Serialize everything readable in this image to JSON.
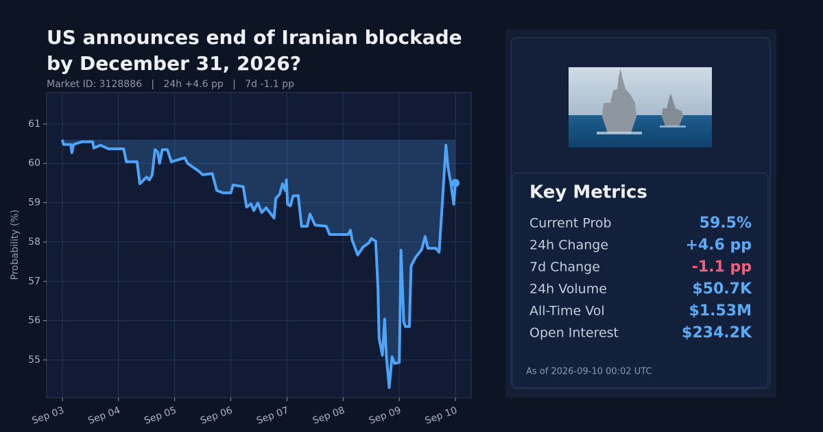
{
  "chart_data": {
    "type": "line",
    "title_lines": [
      "US announces end of Iranian blockade",
      "by December 31, 2026?"
    ],
    "subtitle": "Market ID: 3128886   |   24h +4.6 pp   |   7d -1.1 pp",
    "y_label": "Probability (%)",
    "x": [
      3.0,
      3.02,
      3.15,
      3.17,
      3.2,
      3.35,
      3.54,
      3.56,
      3.68,
      3.82,
      4.09,
      4.14,
      4.33,
      4.38,
      4.45,
      4.5,
      4.55,
      4.6,
      4.65,
      4.7,
      4.73,
      4.78,
      4.87,
      4.94,
      5.18,
      5.23,
      5.33,
      5.43,
      5.5,
      5.67,
      5.75,
      5.86,
      6.0,
      6.04,
      6.22,
      6.28,
      6.36,
      6.41,
      6.48,
      6.55,
      6.63,
      6.72,
      6.77,
      6.8,
      6.87,
      6.92,
      6.97,
      6.99,
      7.01,
      7.06,
      7.11,
      7.2,
      7.26,
      7.36,
      7.41,
      7.5,
      7.7,
      7.76,
      8.09,
      8.13,
      8.16,
      8.26,
      8.36,
      8.46,
      8.5,
      8.58,
      8.62,
      8.64,
      8.7,
      8.74,
      8.77,
      8.82,
      8.87,
      8.92,
      9.0,
      9.03,
      9.08,
      9.11,
      9.18,
      9.21,
      9.29,
      9.4,
      9.46,
      9.51,
      9.65,
      9.71,
      9.77,
      9.83,
      9.87,
      9.92,
      9.97,
      10.0
    ],
    "series": [
      {
        "name": "Probability",
        "color": "#4da3f7",
        "values": [
          60.6,
          60.48,
          60.48,
          60.27,
          60.48,
          60.55,
          60.55,
          60.39,
          60.46,
          60.37,
          60.37,
          60.04,
          60.04,
          59.48,
          59.58,
          59.65,
          59.58,
          59.71,
          60.35,
          60.28,
          60.0,
          60.35,
          60.35,
          60.04,
          60.14,
          60.0,
          59.9,
          59.8,
          59.71,
          59.74,
          59.31,
          59.25,
          59.25,
          59.45,
          59.41,
          58.89,
          58.97,
          58.8,
          58.99,
          58.75,
          58.87,
          58.7,
          58.61,
          59.1,
          59.22,
          59.48,
          59.31,
          59.58,
          58.96,
          58.92,
          59.17,
          59.18,
          58.4,
          58.4,
          58.71,
          58.43,
          58.4,
          58.19,
          58.19,
          58.3,
          58.05,
          57.67,
          57.88,
          57.98,
          58.09,
          58.02,
          56.83,
          55.55,
          55.12,
          56.04,
          55.08,
          54.3,
          55.08,
          54.91,
          54.94,
          57.79,
          55.96,
          55.85,
          55.85,
          57.39,
          57.61,
          57.81,
          58.14,
          57.84,
          57.84,
          57.74,
          59.06,
          60.46,
          59.88,
          59.48,
          58.96,
          59.5
        ]
      }
    ],
    "xlim": [
      2.72,
      10.28
    ],
    "xticks": [
      {
        "value": 3,
        "label": "Sep 03"
      },
      {
        "value": 4,
        "label": "Sep 04"
      },
      {
        "value": 5,
        "label": "Sep 05"
      },
      {
        "value": 6,
        "label": "Sep 06"
      },
      {
        "value": 7,
        "label": "Sep 07"
      },
      {
        "value": 8,
        "label": "Sep 08"
      },
      {
        "value": 9,
        "label": "Sep 09"
      },
      {
        "value": 10,
        "label": "Sep 10"
      }
    ],
    "ylim": [
      54.04,
      61.8
    ],
    "yticks": [
      55,
      56,
      57,
      58,
      59,
      60,
      61
    ],
    "grid": true
  },
  "panel": {
    "heading": "Key Metrics",
    "metrics": [
      {
        "label": "Current Prob",
        "value": "59.5%",
        "color": "#5aabf5"
      },
      {
        "label": "24h Change",
        "value": "+4.6 pp",
        "color": "#5aabf5"
      },
      {
        "label": "7d Change",
        "value": "-1.1 pp",
        "color": "#f0607a"
      },
      {
        "label": "24h Volume",
        "value": "$50.7K",
        "color": "#5aabf5"
      },
      {
        "label": "All-Time Vol",
        "value": "$1.53M",
        "color": "#5aabf5"
      },
      {
        "label": "Open Interest",
        "value": "$234.2K",
        "color": "#5aabf5"
      }
    ],
    "footnote": "As of 2026-09-10 00:02 UTC"
  }
}
